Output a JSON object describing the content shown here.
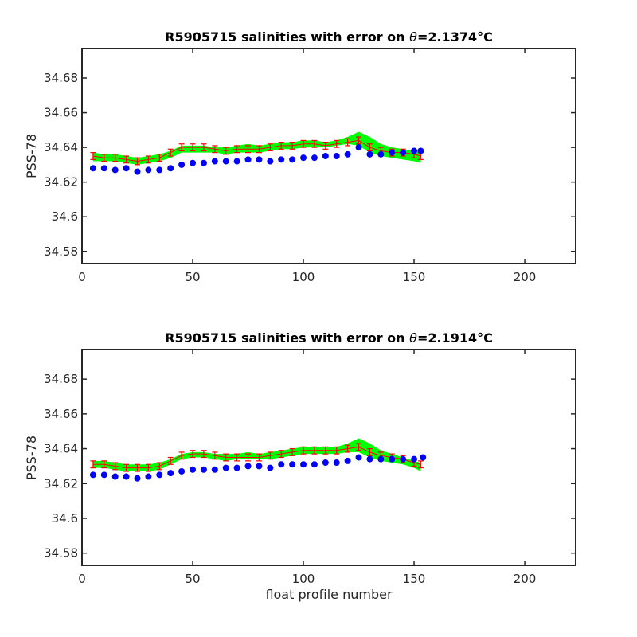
{
  "colors": {
    "background": "#ffffff",
    "axes": "#262626",
    "series_float": "#0000ff",
    "series_mapped": "#ff0000",
    "error_band": "#00ff00"
  },
  "chart_data": [
    {
      "type": "scatter",
      "title_prefix": "R5905715 salinities with error on ",
      "title_symbol": "θ",
      "title_suffix": "=2.1374",
      "title_unit": "°C",
      "xlabel": "",
      "ylabel": "PSS-78",
      "xlim": [
        0,
        223
      ],
      "ylim": [
        34.573,
        34.697
      ],
      "xticks": [
        0,
        50,
        100,
        150,
        200
      ],
      "xtick_labels": [
        "0",
        "50",
        "100",
        "150",
        "200"
      ],
      "yticks": [
        34.58,
        34.6,
        34.62,
        34.64,
        34.66,
        34.68
      ],
      "ytick_labels": [
        "34.58",
        "34.6",
        "34.62",
        "34.64",
        "34.66",
        "34.68"
      ],
      "grid": false,
      "series": [
        {
          "x": [
            5,
            10,
            15,
            20,
            25,
            30,
            35,
            40,
            45,
            50,
            55,
            60,
            65,
            70,
            75,
            80,
            85,
            90,
            95,
            100,
            105,
            110,
            115,
            120,
            125,
            130,
            135,
            140,
            145,
            150,
            153
          ],
          "values": [
            34.628,
            34.628,
            34.627,
            34.628,
            34.626,
            34.627,
            34.627,
            34.628,
            34.63,
            34.631,
            34.631,
            34.632,
            34.632,
            34.632,
            34.633,
            34.633,
            34.632,
            34.633,
            34.633,
            34.634,
            34.634,
            34.635,
            34.635,
            34.636,
            34.64,
            34.636,
            34.636,
            34.637,
            34.637,
            34.638,
            34.638
          ]
        },
        {
          "x": [
            5,
            10,
            15,
            20,
            25,
            30,
            35,
            40,
            45,
            50,
            55,
            60,
            65,
            70,
            75,
            80,
            85,
            90,
            95,
            100,
            105,
            110,
            115,
            120,
            125,
            130,
            135,
            140,
            145,
            150,
            153
          ],
          "values": [
            34.635,
            34.634,
            34.634,
            34.633,
            34.632,
            34.633,
            34.634,
            34.637,
            34.64,
            34.64,
            34.64,
            34.639,
            34.638,
            34.639,
            34.639,
            34.639,
            34.64,
            34.641,
            34.641,
            34.642,
            34.642,
            34.641,
            34.642,
            34.643,
            34.644,
            34.64,
            34.638,
            34.637,
            34.637,
            34.636,
            34.635
          ],
          "errors": [
            0.002,
            0.002,
            0.002,
            0.002,
            0.002,
            0.002,
            0.002,
            0.002,
            0.002,
            0.002,
            0.002,
            0.002,
            0.002,
            0.002,
            0.002,
            0.002,
            0.002,
            0.002,
            0.002,
            0.002,
            0.002,
            0.002,
            0.002,
            0.002,
            0.002,
            0.002,
            0.002,
            0.002,
            0.002,
            0.002,
            0.002
          ]
        },
        {
          "x": [
            5,
            10,
            15,
            20,
            25,
            30,
            35,
            40,
            45,
            50,
            55,
            60,
            65,
            70,
            75,
            80,
            85,
            90,
            95,
            100,
            105,
            110,
            115,
            120,
            125,
            130,
            135,
            140,
            145,
            150,
            153
          ],
          "upper": [
            34.637,
            34.636,
            34.636,
            34.635,
            34.634,
            34.635,
            34.636,
            34.638,
            34.641,
            34.641,
            34.641,
            34.64,
            34.64,
            34.641,
            34.642,
            34.641,
            34.642,
            34.643,
            34.643,
            34.644,
            34.644,
            34.643,
            34.644,
            34.646,
            34.649,
            34.646,
            34.642,
            34.64,
            34.639,
            34.638,
            34.637
          ],
          "lower": [
            34.632,
            34.632,
            34.632,
            34.631,
            34.63,
            34.631,
            34.632,
            34.634,
            34.637,
            34.637,
            34.637,
            34.637,
            34.636,
            34.637,
            34.637,
            34.637,
            34.638,
            34.639,
            34.639,
            34.64,
            34.64,
            34.64,
            34.641,
            34.642,
            34.641,
            34.637,
            34.635,
            34.634,
            34.633,
            34.632,
            34.631
          ]
        }
      ]
    },
    {
      "type": "scatter",
      "title_prefix": "R5905715 salinities with error on ",
      "title_symbol": "θ",
      "title_suffix": "=2.1914",
      "title_unit": "°C",
      "xlabel": "float profile number",
      "ylabel": "PSS-78",
      "xlim": [
        0,
        223
      ],
      "ylim": [
        34.573,
        34.697
      ],
      "xticks": [
        0,
        50,
        100,
        150,
        200
      ],
      "xtick_labels": [
        "0",
        "50",
        "100",
        "150",
        "200"
      ],
      "yticks": [
        34.58,
        34.6,
        34.62,
        34.64,
        34.66,
        34.68
      ],
      "ytick_labels": [
        "34.58",
        "34.6",
        "34.62",
        "34.64",
        "34.66",
        "34.68"
      ],
      "grid": false,
      "series": [
        {
          "x": [
            5,
            10,
            15,
            20,
            25,
            30,
            35,
            40,
            45,
            50,
            55,
            60,
            65,
            70,
            75,
            80,
            85,
            90,
            95,
            100,
            105,
            110,
            115,
            120,
            125,
            130,
            135,
            140,
            145,
            150,
            154
          ],
          "values": [
            34.625,
            34.625,
            34.624,
            34.624,
            34.623,
            34.624,
            34.625,
            34.626,
            34.627,
            34.628,
            34.628,
            34.628,
            34.629,
            34.629,
            34.63,
            34.63,
            34.629,
            34.631,
            34.631,
            34.631,
            34.631,
            34.632,
            34.632,
            34.633,
            34.635,
            34.634,
            34.634,
            34.634,
            34.634,
            34.634,
            34.635
          ]
        },
        {
          "x": [
            5,
            10,
            15,
            20,
            25,
            30,
            35,
            40,
            45,
            50,
            55,
            60,
            65,
            70,
            75,
            80,
            85,
            90,
            95,
            100,
            105,
            110,
            115,
            120,
            125,
            130,
            135,
            140,
            145,
            150,
            153
          ],
          "values": [
            34.631,
            34.631,
            34.63,
            34.629,
            34.629,
            34.629,
            34.63,
            34.633,
            34.636,
            34.637,
            34.637,
            34.636,
            34.635,
            34.635,
            34.635,
            34.635,
            34.636,
            34.637,
            34.638,
            34.639,
            34.639,
            34.639,
            34.639,
            34.64,
            34.641,
            34.638,
            34.636,
            34.635,
            34.634,
            34.632,
            34.631
          ],
          "errors": [
            0.002,
            0.002,
            0.002,
            0.002,
            0.002,
            0.002,
            0.002,
            0.002,
            0.002,
            0.002,
            0.002,
            0.002,
            0.002,
            0.002,
            0.002,
            0.002,
            0.002,
            0.002,
            0.002,
            0.002,
            0.002,
            0.002,
            0.002,
            0.002,
            0.002,
            0.002,
            0.002,
            0.002,
            0.002,
            0.002,
            0.002
          ]
        },
        {
          "x": [
            5,
            10,
            15,
            20,
            25,
            30,
            35,
            40,
            45,
            50,
            55,
            60,
            65,
            70,
            75,
            80,
            85,
            90,
            95,
            100,
            105,
            110,
            115,
            120,
            125,
            130,
            135,
            140,
            145,
            150,
            153
          ],
          "upper": [
            34.633,
            34.633,
            34.632,
            34.631,
            34.631,
            34.631,
            34.632,
            34.634,
            34.637,
            34.638,
            34.638,
            34.637,
            34.637,
            34.637,
            34.638,
            34.637,
            34.638,
            34.639,
            34.64,
            34.641,
            34.641,
            34.641,
            34.641,
            34.643,
            34.646,
            34.643,
            34.639,
            34.637,
            34.635,
            34.633,
            34.632
          ],
          "lower": [
            34.629,
            34.629,
            34.628,
            34.627,
            34.627,
            34.627,
            34.628,
            34.631,
            34.634,
            34.635,
            34.635,
            34.634,
            34.633,
            34.634,
            34.634,
            34.634,
            34.634,
            34.635,
            34.636,
            34.637,
            34.637,
            34.637,
            34.637,
            34.638,
            34.638,
            34.635,
            34.633,
            34.632,
            34.631,
            34.629,
            34.627
          ]
        }
      ]
    }
  ]
}
